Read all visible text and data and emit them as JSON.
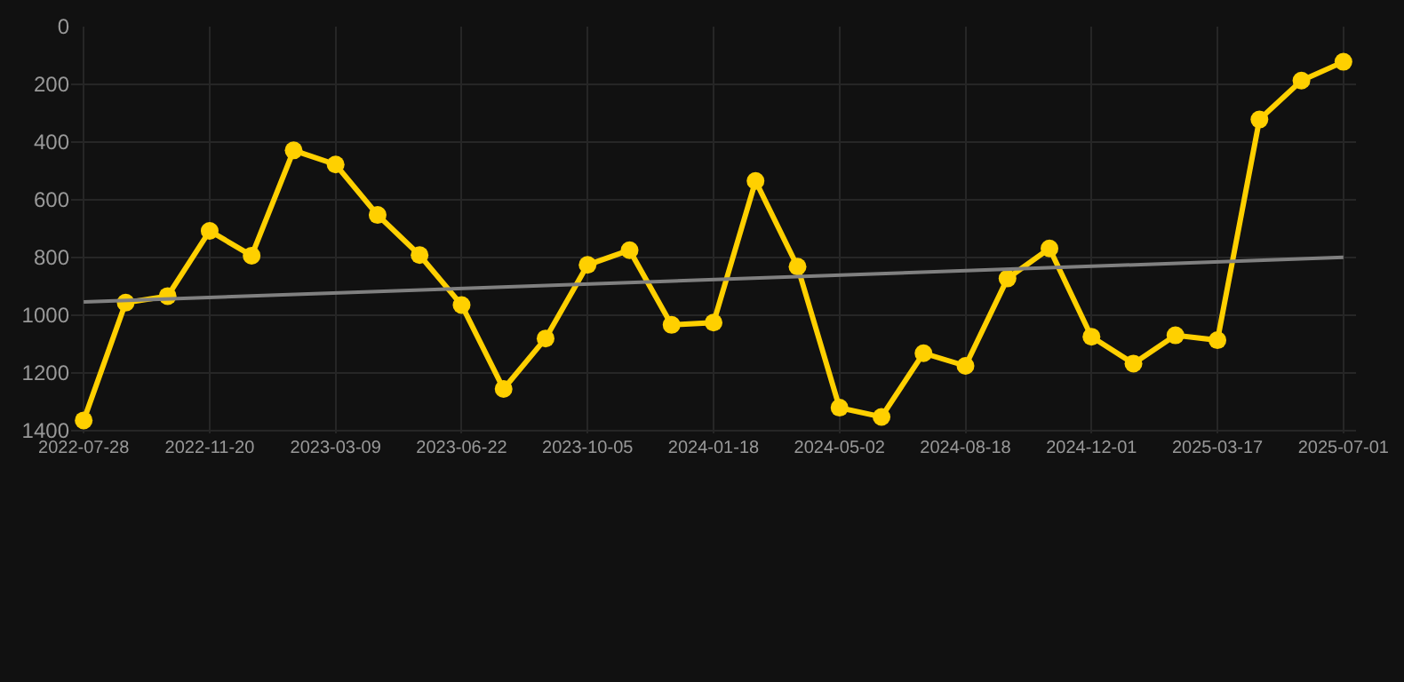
{
  "chart_data": {
    "type": "line",
    "categories": [
      "2022-07-28",
      null,
      null,
      "2022-11-20",
      null,
      null,
      "2023-03-09",
      null,
      null,
      "2023-06-22",
      null,
      null,
      "2023-10-05",
      null,
      null,
      "2024-01-18",
      null,
      null,
      "2024-05-02",
      null,
      null,
      "2024-08-18",
      null,
      null,
      "2024-12-01",
      null,
      null,
      "2025-03-17",
      null,
      null,
      "2025-07-01"
    ],
    "series": [
      {
        "color": "#ffd000",
        "marker": "circle",
        "values": [
          1365,
          957,
          934,
          708,
          794,
          429,
          478,
          653,
          792,
          965,
          1256,
          1081,
          826,
          775,
          1034,
          1026,
          535,
          832,
          1321,
          1353,
          1132,
          1176,
          873,
          769,
          1075,
          1168,
          1070,
          1087,
          322,
          187,
          122
        ]
      },
      {
        "color": "#808080",
        "marker": "none",
        "values": [
          954,
          null,
          null,
          null,
          null,
          null,
          null,
          null,
          null,
          null,
          null,
          null,
          null,
          null,
          null,
          null,
          null,
          null,
          null,
          null,
          null,
          null,
          null,
          null,
          null,
          null,
          null,
          null,
          null,
          null,
          800
        ]
      }
    ],
    "ylim": [
      1410,
      0
    ],
    "yticks": [
      0,
      200,
      400,
      600,
      800,
      1000,
      1200,
      1400
    ],
    "grid": true
  }
}
